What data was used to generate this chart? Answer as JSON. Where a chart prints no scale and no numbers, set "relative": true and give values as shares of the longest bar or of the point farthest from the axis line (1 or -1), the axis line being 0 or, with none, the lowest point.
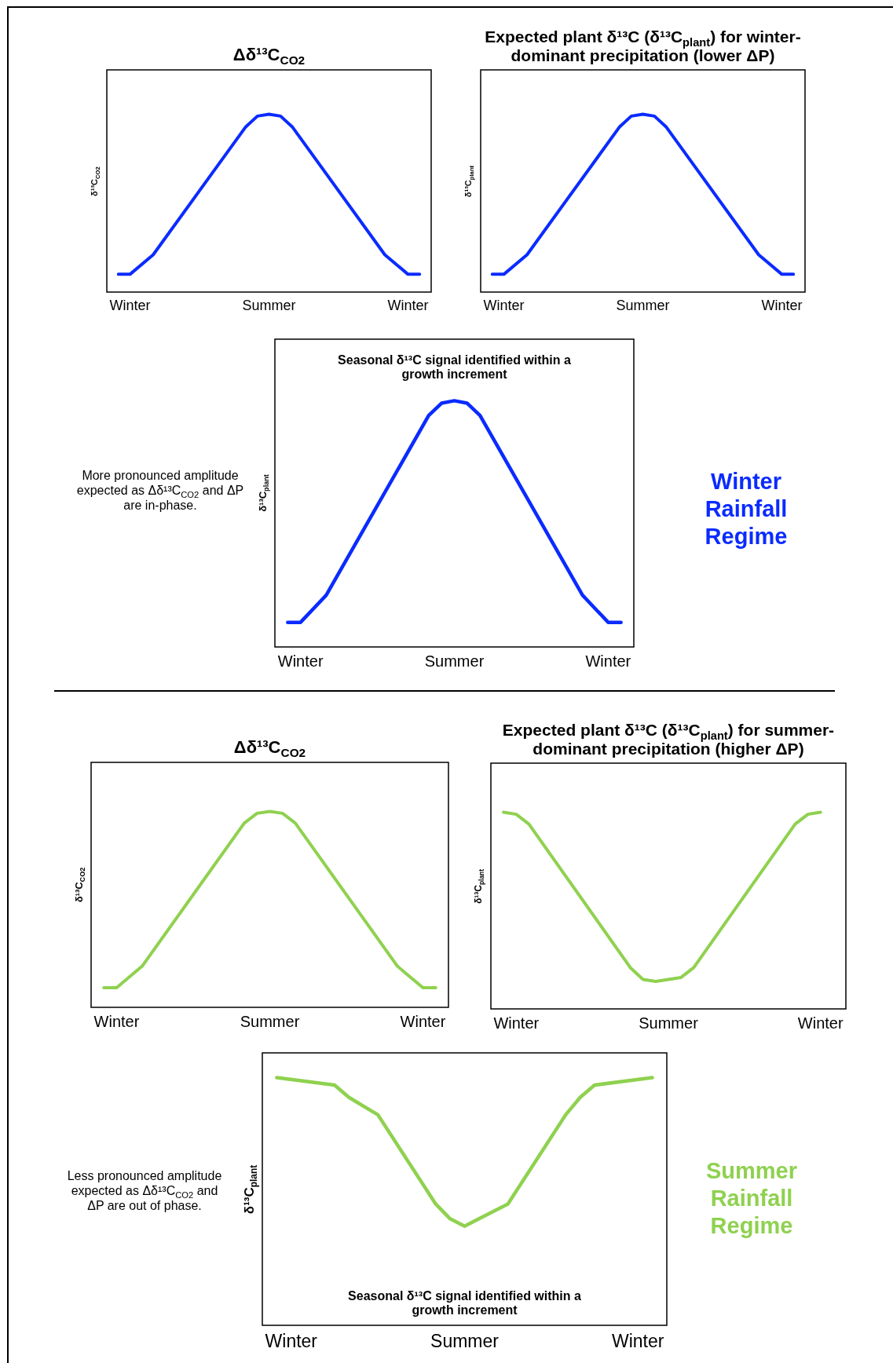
{
  "chart_data": [
    {
      "type": "line",
      "title": "Δδ¹³C$_{CO2}$",
      "ylabel": "δ¹³C$_{CO2}$",
      "relative": true,
      "marker": "none",
      "categories": [
        null,
        null,
        "Winter",
        null,
        null,
        null,
        null,
        null,
        null,
        null,
        null,
        null,
        null,
        null,
        "Summer",
        null,
        null,
        null,
        null,
        null,
        null,
        null,
        null,
        null,
        null,
        null,
        "Winter",
        null,
        null
      ],
      "series": [
        {
          "color": "#0a2bff",
          "values": [
            null,
            0.1,
            0.1,
            null,
            0.21,
            null,
            null,
            null,
            null,
            null,
            null,
            null,
            0.93,
            0.99,
            1,
            0.99,
            0.93,
            null,
            null,
            null,
            null,
            null,
            null,
            null,
            0.21,
            null,
            0.1,
            0.1,
            null
          ]
        }
      ]
    },
    {
      "type": "line",
      "title": "Expected plant δ¹³C (δ¹³C$_{plant}$) for winter-dominant precipitation (lower ΔP)",
      "ylabel": "δ¹³C$_{plant}$",
      "relative": true,
      "marker": "none",
      "categories": [
        null,
        null,
        "Winter",
        null,
        null,
        null,
        null,
        null,
        null,
        null,
        null,
        null,
        null,
        null,
        "Summer",
        null,
        null,
        null,
        null,
        null,
        null,
        null,
        null,
        null,
        null,
        null,
        "Winter",
        null,
        null
      ],
      "series": [
        {
          "color": "#0a2bff",
          "values": [
            null,
            0.1,
            0.1,
            null,
            0.21,
            null,
            null,
            null,
            null,
            null,
            null,
            null,
            0.93,
            0.99,
            1,
            0.99,
            0.93,
            null,
            null,
            null,
            null,
            null,
            null,
            null,
            0.21,
            null,
            0.1,
            0.1,
            null
          ]
        }
      ]
    },
    {
      "type": "line",
      "title": "Seasonal δ¹³C signal identified within a growth increment",
      "ylabel": "δ¹³C$_{plant}$",
      "relative": true,
      "marker": "none",
      "categories": [
        null,
        null,
        "Winter",
        null,
        null,
        null,
        null,
        null,
        null,
        null,
        null,
        null,
        null,
        null,
        "Summer",
        null,
        null,
        null,
        null,
        null,
        null,
        null,
        null,
        null,
        null,
        null,
        "Winter",
        null,
        null
      ],
      "annotations": [
        "More pronounced amplitude expected as Δδ¹³C$_{CO2}$ and ΔP are in-phase.",
        "Winter Rainfall Regime"
      ],
      "series": [
        {
          "color": "#0a2bff",
          "values": [
            null,
            0.1,
            0.1,
            null,
            0.21,
            null,
            null,
            null,
            null,
            null,
            null,
            null,
            0.94,
            0.99,
            1,
            0.99,
            0.94,
            null,
            null,
            null,
            null,
            null,
            null,
            null,
            0.21,
            null,
            0.1,
            0.1,
            null
          ]
        }
      ]
    },
    {
      "type": "line",
      "title": "Δδ¹³C$_{CO2}$",
      "ylabel": "δ¹³C$_{CO2}$",
      "relative": true,
      "marker": "none",
      "categories": [
        null,
        null,
        "Winter",
        null,
        null,
        null,
        null,
        null,
        null,
        null,
        null,
        null,
        null,
        null,
        "Summer",
        null,
        null,
        null,
        null,
        null,
        null,
        null,
        null,
        null,
        null,
        null,
        "Winter",
        null,
        null
      ],
      "series": [
        {
          "color": "#8fd14f",
          "values": [
            null,
            0.1,
            0.1,
            null,
            0.21,
            null,
            null,
            null,
            null,
            null,
            null,
            null,
            0.94,
            0.99,
            1,
            0.99,
            0.94,
            null,
            null,
            null,
            null,
            null,
            null,
            null,
            0.21,
            null,
            0.1,
            0.1,
            null
          ]
        }
      ]
    },
    {
      "type": "line",
      "title": "Expected plant δ¹³C (δ¹³C$_{plant}$) for summer-dominant precipitation (higher ΔP)",
      "ylabel": "δ¹³C$_{plant}$",
      "relative": true,
      "marker": "none",
      "categories": [
        null,
        null,
        "Winter",
        null,
        null,
        null,
        null,
        null,
        null,
        null,
        null,
        null,
        null,
        null,
        "Summer",
        null,
        null,
        null,
        null,
        null,
        null,
        null,
        null,
        null,
        null,
        null,
        "Winter",
        null,
        null
      ],
      "series": [
        {
          "color": "#8fd14f",
          "values": [
            null,
            1,
            0.99,
            0.94,
            null,
            null,
            null,
            null,
            null,
            null,
            null,
            0.21,
            0.15,
            0.14,
            0.15,
            0.16,
            0.21,
            null,
            null,
            null,
            null,
            null,
            null,
            null,
            0.94,
            0.99,
            1,
            null,
            null
          ]
        }
      ]
    },
    {
      "type": "line",
      "title": "Seasonal δ¹³C signal identified within a growth increment",
      "ylabel": "δ¹³C$_{plant}$",
      "relative": true,
      "marker": "none",
      "categories": [
        null,
        null,
        "Winter",
        null,
        null,
        null,
        null,
        null,
        null,
        null,
        null,
        null,
        null,
        null,
        "Summer",
        null,
        null,
        null,
        null,
        null,
        null,
        null,
        null,
        null,
        null,
        null,
        "Winter",
        null,
        null
      ],
      "annotations": [
        "Less pronounced amplitude expected as Δδ¹³C$_{CO2}$ and ΔP are out of phase.",
        "Summer Rainfall Regime"
      ],
      "series": [
        {
          "color": "#8fd14f",
          "values": [
            null,
            1,
            null,
            null,
            null,
            0.97,
            0.92,
            null,
            0.85,
            null,
            null,
            null,
            0.49,
            0.43,
            0.4,
            0.43,
            null,
            0.49,
            null,
            null,
            null,
            0.85,
            0.92,
            0.97,
            null,
            null,
            null,
            1,
            null
          ]
        }
      ]
    }
  ]
}
